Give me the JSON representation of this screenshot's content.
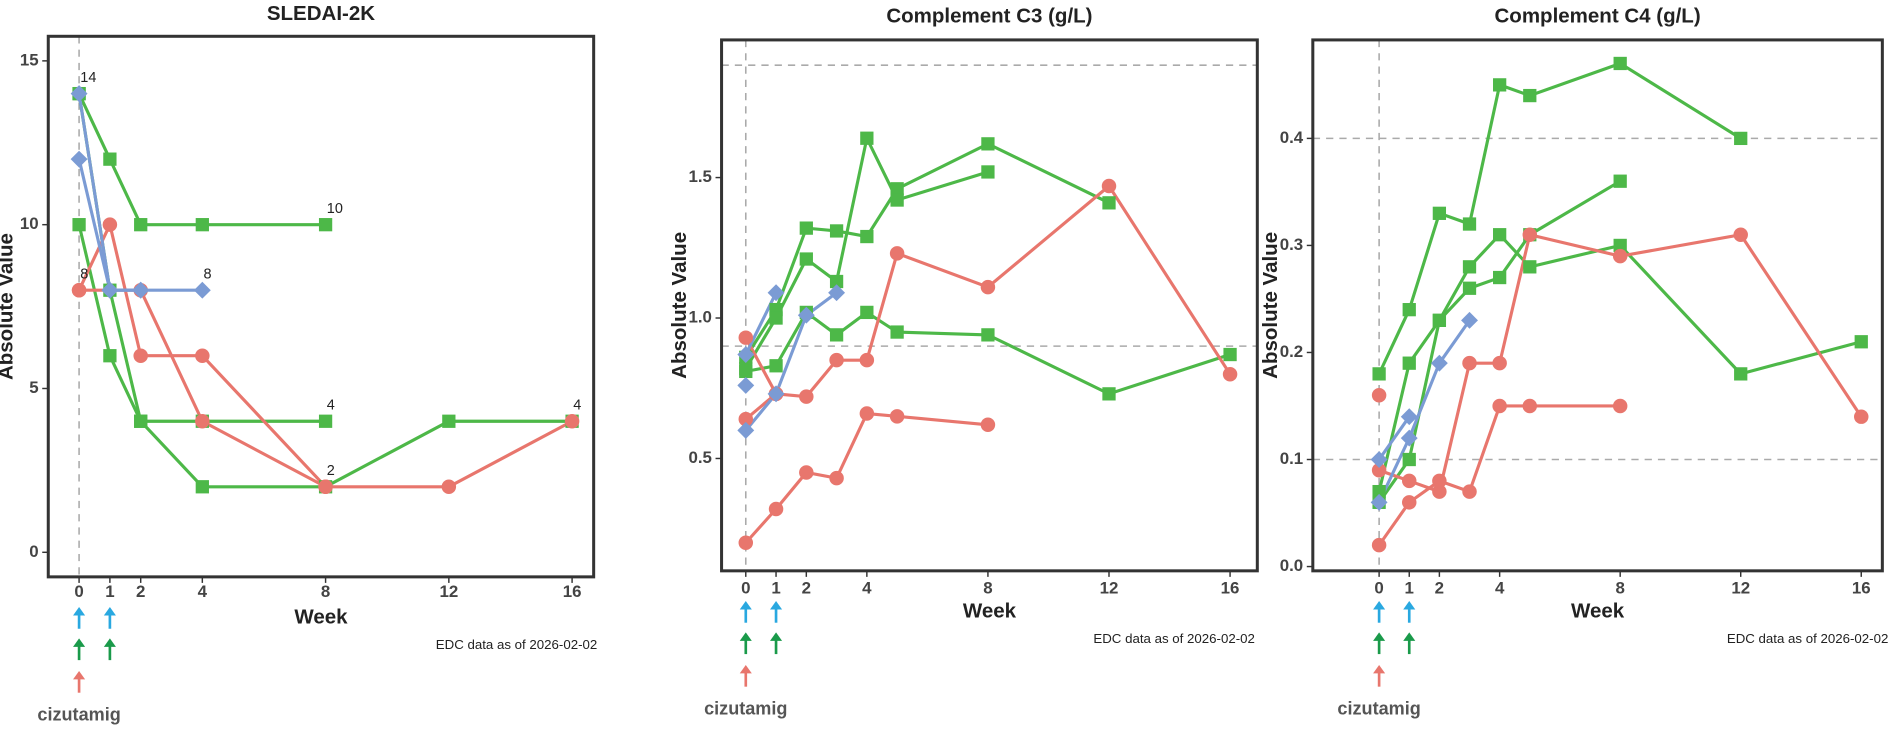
{
  "chart_data": [
    {
      "type": "line",
      "title": "SLEDAI-2K",
      "x_label": "Week",
      "y_label": "Absolute Value",
      "xlim": [
        -1,
        16.7
      ],
      "ylim": [
        -0.75,
        15.75
      ],
      "xticks": [
        0,
        1,
        2,
        4,
        8,
        12,
        16
      ],
      "yticks": [
        0,
        5,
        10,
        15
      ],
      "vlines": [
        0
      ],
      "hlines": [],
      "series": [
        {
          "color": "#4db848",
          "marker": "square",
          "x": [
            0,
            1,
            2,
            4,
            8
          ],
          "values": [
            14,
            12,
            10,
            10,
            10
          ],
          "value_labels": [
            "14",
            null,
            null,
            null,
            "10"
          ]
        },
        {
          "color": "#4db848",
          "marker": "square",
          "x": [
            0,
            1,
            2,
            4,
            8
          ],
          "values": [
            10,
            6,
            4,
            4,
            4
          ],
          "value_labels": [
            null,
            null,
            null,
            null,
            "4"
          ]
        },
        {
          "color": "#4db848",
          "marker": "square",
          "x": [
            0,
            1,
            2,
            4,
            8,
            12,
            16
          ],
          "values": [
            14,
            8,
            4,
            2,
            2,
            4,
            4
          ],
          "value_labels": [
            null,
            null,
            null,
            null,
            "2",
            null,
            "4"
          ]
        },
        {
          "color": "#e8766d",
          "marker": "circle",
          "x": [
            0,
            1,
            2,
            4,
            8,
            12,
            16
          ],
          "values": [
            8,
            10,
            6,
            6,
            2,
            2,
            4
          ],
          "value_labels": [
            "8",
            null,
            null,
            null,
            null,
            null,
            null
          ]
        },
        {
          "color": "#e8766d",
          "marker": "circle",
          "x": [
            0,
            2,
            4,
            8
          ],
          "values": [
            8,
            8,
            4,
            2
          ],
          "value_labels": [
            null,
            null,
            null,
            null
          ]
        },
        {
          "color": "#7b9bd4",
          "marker": "diamond",
          "x": [
            0,
            1,
            2,
            4
          ],
          "values": [
            12,
            8,
            8,
            8
          ],
          "value_labels": [
            null,
            null,
            null,
            "8"
          ]
        },
        {
          "color": "#7b9bd4",
          "marker": "diamond",
          "x": [
            0,
            1,
            2
          ],
          "values": [
            14,
            8,
            8
          ],
          "value_labels": [
            null,
            null,
            null
          ]
        }
      ],
      "dose_markers": [
        {
          "color": "#29a8e0",
          "x": [
            0,
            1
          ]
        },
        {
          "color": "#1a9a4a",
          "x": [
            0,
            1
          ]
        },
        {
          "color": "#e8766d",
          "x": [
            0
          ]
        }
      ],
      "drug_label": "cizutamig",
      "note": "EDC data as of 2026-02-02"
    },
    {
      "type": "line",
      "title": "Complement C3 (g/L)",
      "x_label": "Week",
      "y_label": "Absolute Value",
      "xlim": [
        -0.8,
        16.9
      ],
      "ylim": [
        0.1,
        1.99
      ],
      "xticks": [
        0,
        1,
        2,
        4,
        8,
        12,
        16
      ],
      "yticks": [
        0.5,
        {
          "value": 1,
          "label": "1.0"
        },
        1.5
      ],
      "vlines": [
        0
      ],
      "hlines": [
        0.9,
        1.9
      ],
      "series": [
        {
          "color": "#4db848",
          "marker": "square",
          "x": [
            0,
            1,
            2,
            3,
            4,
            5,
            8,
            12
          ],
          "values": [
            0.86,
            1.03,
            1.32,
            1.31,
            1.29,
            1.46,
            1.62,
            1.41
          ]
        },
        {
          "color": "#4db848",
          "marker": "square",
          "x": [
            0,
            1,
            2,
            3,
            4,
            5,
            8
          ],
          "values": [
            0.82,
            1.0,
            1.21,
            1.13,
            1.64,
            1.42,
            1.52
          ]
        },
        {
          "color": "#4db848",
          "marker": "square",
          "x": [
            0,
            1,
            2,
            3,
            4,
            5,
            8,
            12,
            16
          ],
          "values": [
            0.81,
            0.83,
            1.02,
            0.94,
            1.02,
            0.95,
            0.94,
            0.73,
            0.87
          ]
        },
        {
          "color": "#e8766d",
          "marker": "circle",
          "x": [
            0,
            1,
            2,
            3,
            4,
            5,
            8,
            12,
            16
          ],
          "values": [
            0.93,
            0.73,
            0.72,
            0.85,
            0.85,
            1.23,
            1.11,
            1.47,
            0.8
          ]
        },
        {
          "color": "#e8766d",
          "marker": "circle",
          "x": [
            0,
            1,
            2,
            3,
            4,
            5,
            8
          ],
          "values": [
            0.2,
            0.32,
            0.45,
            0.43,
            0.66,
            0.65,
            0.62
          ]
        },
        {
          "color": "#e8766d",
          "marker": "circle",
          "x": [
            0,
            1
          ],
          "values": [
            0.64,
            0.73
          ]
        },
        {
          "color": "#7b9bd4",
          "marker": "diamond",
          "x": [
            0,
            1,
            2,
            3
          ],
          "values": [
            0.6,
            0.73,
            1.01,
            1.09
          ]
        },
        {
          "color": "#7b9bd4",
          "marker": "diamond",
          "x": [
            0,
            1
          ],
          "values": [
            0.87,
            1.09
          ]
        },
        {
          "color": "#7b9bd4",
          "marker": "diamond",
          "x": [
            0
          ],
          "values": [
            0.76
          ]
        }
      ],
      "dose_markers": [
        {
          "color": "#29a8e0",
          "x": [
            0,
            1
          ]
        },
        {
          "color": "#1a9a4a",
          "x": [
            0,
            1
          ]
        },
        {
          "color": "#e8766d",
          "x": [
            0
          ]
        }
      ],
      "drug_label": "cizutamig",
      "note": "EDC data as of 2026-02-02"
    },
    {
      "type": "line",
      "title": "Complement C4 (g/L)",
      "x_label": "Week",
      "y_label": "Absolute Value",
      "xlim": [
        -2.2,
        16.7
      ],
      "ylim": [
        -0.004,
        0.492
      ],
      "xticks": [
        0,
        1,
        2,
        4,
        8,
        12,
        16
      ],
      "yticks": [
        {
          "value": 0,
          "label": "0.0"
        },
        0.1,
        0.2,
        0.3,
        0.4
      ],
      "vlines": [
        0
      ],
      "hlines": [
        0.1,
        0.4
      ],
      "series": [
        {
          "color": "#4db848",
          "marker": "square",
          "x": [
            0,
            1,
            2,
            3,
            4,
            5,
            8,
            12
          ],
          "values": [
            0.18,
            0.24,
            0.33,
            0.32,
            0.45,
            0.44,
            0.47,
            0.4
          ]
        },
        {
          "color": "#4db848",
          "marker": "square",
          "x": [
            0,
            1,
            2,
            3,
            4,
            5,
            8
          ],
          "values": [
            0.07,
            0.19,
            0.23,
            0.26,
            0.27,
            0.31,
            0.36
          ]
        },
        {
          "color": "#4db848",
          "marker": "square",
          "x": [
            0,
            1,
            2,
            3,
            4,
            5,
            8,
            12,
            16
          ],
          "values": [
            0.06,
            0.1,
            0.23,
            0.28,
            0.31,
            0.28,
            0.3,
            0.18,
            0.21
          ]
        },
        {
          "color": "#e8766d",
          "marker": "circle",
          "x": [
            0,
            1,
            2,
            3,
            4,
            5,
            8,
            12,
            16
          ],
          "values": [
            0.09,
            0.08,
            0.07,
            0.19,
            0.19,
            0.31,
            0.29,
            0.31,
            0.14
          ]
        },
        {
          "color": "#e8766d",
          "marker": "circle",
          "x": [
            0,
            1,
            2,
            3,
            4,
            5,
            8
          ],
          "values": [
            0.02,
            0.06,
            0.08,
            0.07,
            0.15,
            0.15,
            0.15
          ]
        },
        {
          "color": "#e8766d",
          "marker": "circle",
          "x": [
            0
          ],
          "values": [
            0.16
          ]
        },
        {
          "color": "#7b9bd4",
          "marker": "diamond",
          "x": [
            0,
            1,
            2,
            3
          ],
          "values": [
            0.06,
            0.12,
            0.19,
            0.23
          ]
        },
        {
          "color": "#7b9bd4",
          "marker": "diamond",
          "x": [
            0,
            1
          ],
          "values": [
            0.1,
            0.14
          ]
        }
      ],
      "dose_markers": [
        {
          "color": "#29a8e0",
          "x": [
            0,
            1
          ]
        },
        {
          "color": "#1a9a4a",
          "x": [
            0,
            1
          ]
        },
        {
          "color": "#e8766d",
          "x": [
            0
          ]
        }
      ],
      "drug_label": "cizutamig",
      "note": "EDC data as of 2026-02-02"
    }
  ]
}
